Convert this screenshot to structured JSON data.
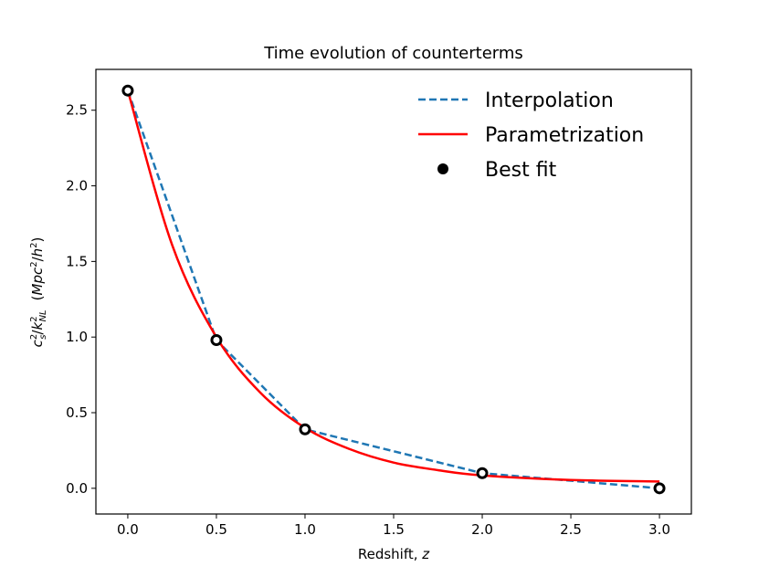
{
  "chart_data": {
    "type": "line",
    "title": "Time evolution of counterterms",
    "xlabel": "Redshift, z",
    "ylabel": "c_s^2/k_NL^2  (Mpc^2/h^2)",
    "xlim": [
      -0.18,
      3.18
    ],
    "ylim": [
      -0.17,
      2.77
    ],
    "xticks": [
      0.0,
      0.5,
      1.0,
      1.5,
      2.0,
      2.5,
      3.0
    ],
    "yticks": [
      0.0,
      0.5,
      1.0,
      1.5,
      2.0,
      2.5
    ],
    "xtick_labels": [
      "0.0",
      "0.5",
      "1.0",
      "1.5",
      "2.0",
      "2.5",
      "3.0"
    ],
    "ytick_labels": [
      "0.0",
      "0.5",
      "1.0",
      "1.5",
      "2.0",
      "2.5"
    ],
    "grid": false,
    "legend_position": "top-right",
    "series": [
      {
        "name": "Interpolation",
        "style": "dashed",
        "color": "#1f77b4",
        "x": [
          0.0,
          0.5,
          1.0,
          2.0,
          3.0
        ],
        "y": [
          2.63,
          0.98,
          0.39,
          0.1,
          0.0
        ]
      },
      {
        "name": "Parametrization",
        "style": "solid",
        "color": "#ff0000",
        "x": [
          0.0,
          0.25,
          0.5,
          0.75,
          1.0,
          1.25,
          1.5,
          1.75,
          2.0,
          2.5,
          3.0
        ],
        "y": [
          2.63,
          1.61,
          1.0,
          0.63,
          0.4,
          0.26,
          0.17,
          0.12,
          0.085,
          0.055,
          0.045
        ]
      },
      {
        "name": "Best fit",
        "style": "markers",
        "color": "#000000",
        "x": [
          0.0,
          0.5,
          1.0,
          2.0,
          3.0
        ],
        "y": [
          2.63,
          0.98,
          0.39,
          0.1,
          0.0
        ]
      }
    ]
  }
}
